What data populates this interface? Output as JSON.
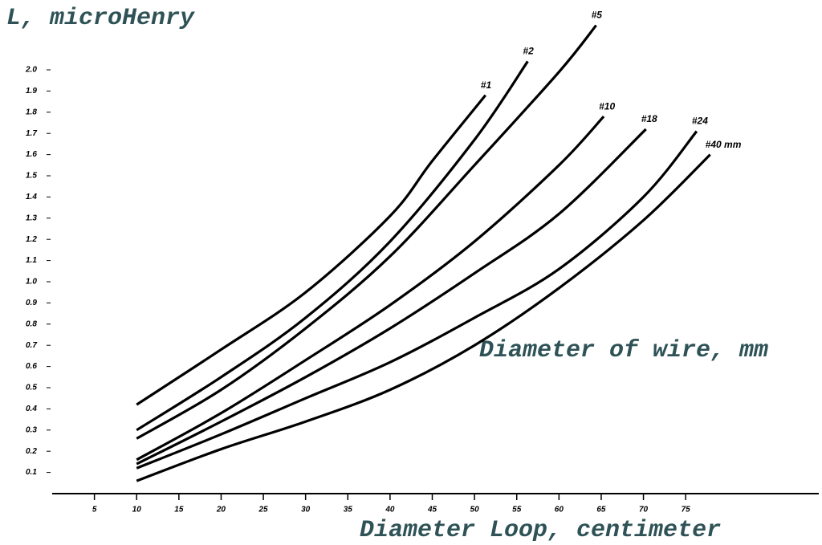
{
  "chart_data": {
    "type": "line",
    "title": "L, microHenry",
    "x_label": "Diameter Loop, centimeter",
    "annotation": "Diameter of wire, mm",
    "xlim": [
      0,
      90
    ],
    "ylim": [
      0,
      2.25
    ],
    "xticks": [
      5,
      10,
      15,
      20,
      25,
      30,
      35,
      40,
      45,
      50,
      55,
      60,
      65,
      70,
      75
    ],
    "yticks": [
      0.1,
      0.2,
      0.3,
      0.4,
      0.5,
      0.6,
      0.7,
      0.8,
      0.9,
      {
        "value": 1.0,
        "label": "1.0"
      },
      1.1,
      1.2,
      1.3,
      1.4,
      1.5,
      1.6,
      1.7,
      1.8,
      1.9,
      {
        "value": 2.0,
        "label": "2.0"
      }
    ],
    "color": "#000000",
    "series": [
      {
        "name": "#1",
        "x": [
          10,
          20,
          30,
          40,
          45,
          51.3
        ],
        "values": [
          0.42,
          0.68,
          0.95,
          1.31,
          1.57,
          1.88
        ]
      },
      {
        "name": "#2",
        "x": [
          10,
          20,
          30,
          40,
          50,
          56.3
        ],
        "values": [
          0.3,
          0.55,
          0.83,
          1.19,
          1.67,
          2.04
        ]
      },
      {
        "name": "#5",
        "x": [
          10,
          20,
          30,
          40,
          50,
          60,
          64.4
        ],
        "values": [
          0.26,
          0.49,
          0.78,
          1.12,
          1.55,
          1.99,
          2.21
        ]
      },
      {
        "name": "#10",
        "x": [
          10,
          20,
          30,
          40,
          50,
          60,
          65.3
        ],
        "values": [
          0.16,
          0.38,
          0.63,
          0.89,
          1.19,
          1.55,
          1.78
        ]
      },
      {
        "name": "#18",
        "x": [
          10,
          20,
          30,
          40,
          50,
          60,
          70.3
        ],
        "values": [
          0.14,
          0.34,
          0.55,
          0.78,
          1.04,
          1.32,
          1.72
        ]
      },
      {
        "name": "#24",
        "x": [
          10,
          20,
          30,
          40,
          50,
          60,
          70,
          76.3
        ],
        "values": [
          0.12,
          0.28,
          0.45,
          0.62,
          0.83,
          1.06,
          1.4,
          1.71
        ]
      },
      {
        "name": "#40 mm",
        "x": [
          10,
          20,
          30,
          40,
          50,
          60,
          70,
          77.9
        ],
        "values": [
          0.06,
          0.21,
          0.34,
          0.49,
          0.7,
          0.97,
          1.29,
          1.6
        ]
      }
    ]
  }
}
